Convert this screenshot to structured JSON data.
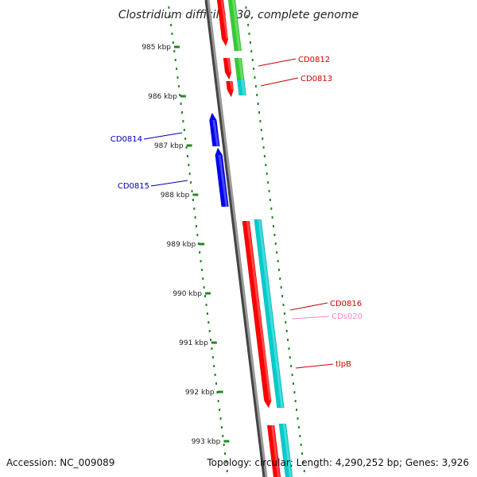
{
  "title": "Clostridium difficile 630, complete genome",
  "ticks": [
    "985 kbp",
    "986 kbp",
    "987 kbp",
    "988 kbp",
    "989 kbp",
    "990 kbp",
    "991 kbp",
    "992 kbp",
    "993 kbp"
  ],
  "gene_labels": [
    {
      "id": "CD0812",
      "text": "CD0812",
      "color": "#cc0000"
    },
    {
      "id": "CD0813",
      "text": "CD0813",
      "color": "#cc0000"
    },
    {
      "id": "CD0814",
      "text": "CD0814",
      "color": "#0000aa"
    },
    {
      "id": "CD0815",
      "text": "CD0815",
      "color": "#0000aa"
    },
    {
      "id": "CD0816",
      "text": "CD0816",
      "color": "#cc0000"
    },
    {
      "id": "CDs020",
      "text": "CDs020",
      "color": "#ff88bb"
    },
    {
      "id": "tlpB",
      "text": "tlpB",
      "color": "#cc0000"
    }
  ],
  "colors": {
    "forward_cds": "#ff0000",
    "reverse_cds": "#0000ee",
    "gene": "#33cc33",
    "rna": "#00cccc",
    "backbone": "#888888",
    "tick": "#228822"
  },
  "footer": {
    "accession": "Accession: NC_009089",
    "summary": "Topology: circular; Length: 4,290,252 bp; Genes: 3,926"
  }
}
